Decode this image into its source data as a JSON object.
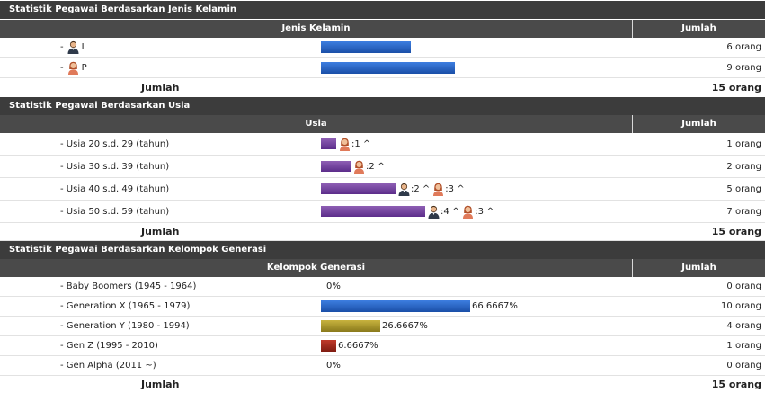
{
  "sections": [
    {
      "title": "Statistik Pegawai Berdasarkan Jenis Kelamin",
      "col_label": "Jenis Kelamin",
      "col_count": "Jumlah",
      "rows": [
        {
          "label": "-",
          "code": "L",
          "icon": "male-user-icon",
          "count": "6 orang",
          "value": 6
        },
        {
          "label": "-",
          "code": "P",
          "icon": "female-user-icon",
          "count": "9 orang",
          "value": 9
        }
      ],
      "total_label": "Jumlah",
      "total_count": "15 orang"
    },
    {
      "title": "Statistik Pegawai Berdasarkan Usia",
      "col_label": "Usia",
      "col_count": "Jumlah",
      "rows": [
        {
          "label": "- Usia 20 s.d. 29 (tahun)",
          "count": "1 orang",
          "value": 1,
          "female": ":1 ^"
        },
        {
          "label": "- Usia 30 s.d. 39 (tahun)",
          "count": "2 orang",
          "value": 2,
          "female": ":2 ^"
        },
        {
          "label": "- Usia 40 s.d. 49 (tahun)",
          "count": "5 orang",
          "value": 5,
          "male": ":2 ^",
          "female": ":3 ^"
        },
        {
          "label": "- Usia 50 s.d. 59 (tahun)",
          "count": "7 orang",
          "value": 7,
          "male": ":4 ^",
          "female": ":3 ^"
        }
      ],
      "total_label": "Jumlah",
      "total_count": "15 orang"
    },
    {
      "title": "Statistik Pegawai Berdasarkan Kelompok Generasi",
      "col_label": "Kelompok Generasi",
      "col_count": "Jumlah",
      "rows": [
        {
          "label": "- Baby Boomers (1945 - 1964)",
          "pct": "0%",
          "count": "0 orang",
          "value": 0,
          "color": "#2d6ad0"
        },
        {
          "label": "- Generation X (1965 - 1979)",
          "pct": "66.6667%",
          "count": "10 orang",
          "value": 10,
          "color": "#2d6ad0"
        },
        {
          "label": "- Generation Y (1980 - 1994)",
          "pct": "26.6667%",
          "count": "4 orang",
          "value": 4,
          "color": "#b8a232"
        },
        {
          "label": "- Gen Z (1995 - 2010)",
          "pct": "6.6667%",
          "count": "1 orang",
          "value": 1,
          "color": "#a82d1e"
        },
        {
          "label": "- Gen Alpha (2011 ~)",
          "pct": "0%",
          "count": "0 orang",
          "value": 0,
          "color": "#2d6ad0"
        }
      ],
      "total_label": "Jumlah",
      "total_count": "15 orang"
    }
  ]
}
